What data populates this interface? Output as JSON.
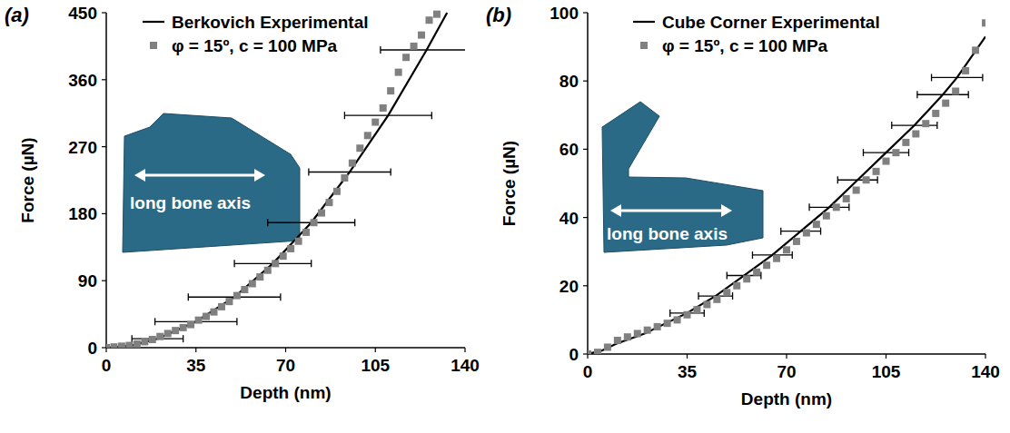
{
  "chart_data": [
    {
      "type": "line",
      "title": "(a)",
      "xlabel": "Depth (nm)",
      "ylabel": "Force (µN)",
      "xlim": [
        0,
        140
      ],
      "xticks": [
        0,
        35,
        70,
        105,
        140
      ],
      "ylim": [
        0,
        450
      ],
      "yticks": [
        0,
        90,
        180,
        270,
        360,
        450
      ],
      "legend": "upper left",
      "annotation": "long bone axis",
      "series": [
        {
          "name": "Berkovich Experimental",
          "type": "line",
          "color": "#000000",
          "x": [
            0,
            10,
            20,
            35,
            50,
            65,
            80,
            95,
            110,
            125,
            133
          ],
          "values": [
            0,
            3,
            12,
            35,
            68,
            113,
            168,
            236,
            312,
            400,
            450
          ],
          "x_error": [
            null,
            null,
            10,
            16,
            18,
            15,
            17,
            16,
            17,
            18,
            null
          ]
        },
        {
          "name": "φ = 15º, c = 100 MPa",
          "type": "scatter",
          "marker": "square",
          "color": "#808080",
          "x": [
            0,
            3,
            6,
            9,
            12,
            15,
            18,
            21,
            24,
            27,
            30,
            33,
            36,
            39,
            42,
            45,
            48,
            51,
            54,
            57,
            60,
            63,
            66,
            69,
            72,
            75,
            78,
            81,
            84,
            87,
            90,
            93,
            96,
            99,
            102,
            105,
            108,
            111,
            114,
            117,
            120,
            123,
            126,
            129
          ],
          "values": [
            0,
            1,
            2,
            3,
            5,
            8,
            11,
            15,
            19,
            23,
            27,
            31,
            37,
            42,
            48,
            55,
            62,
            70,
            78,
            86,
            95,
            104,
            113,
            123,
            133,
            143,
            155,
            168,
            181,
            195,
            210,
            228,
            248,
            268,
            285,
            303,
            322,
            345,
            370,
            390,
            405,
            420,
            440,
            448
          ]
        }
      ]
    },
    {
      "type": "line",
      "title": "(b)",
      "xlabel": "Depth (nm)",
      "ylabel": "Force (µN)",
      "xlim": [
        0,
        140
      ],
      "xticks": [
        0,
        35,
        70,
        105,
        140
      ],
      "ylim": [
        0,
        100
      ],
      "yticks": [
        0,
        20,
        40,
        60,
        80,
        100
      ],
      "legend": "upper left",
      "annotation": "long bone axis",
      "series": [
        {
          "name": "Cube Corner Experimental",
          "type": "line",
          "color": "#000000",
          "x": [
            0,
            5,
            10,
            20,
            35,
            45,
            55,
            65,
            75,
            85,
            95,
            105,
            115,
            125,
            130,
            140
          ],
          "values": [
            0,
            1,
            3,
            6,
            12,
            17,
            23,
            29,
            36,
            43,
            51,
            59,
            67,
            76,
            81,
            93
          ],
          "x_error": [
            null,
            null,
            null,
            null,
            6,
            6,
            6,
            7,
            7,
            7,
            7,
            8,
            8,
            9,
            9,
            null
          ]
        },
        {
          "name": "φ = 15º, c = 100 MPa",
          "type": "scatter",
          "marker": "square",
          "color": "#808080",
          "x": [
            0,
            3.5,
            7,
            10.5,
            14,
            17.5,
            21,
            24.5,
            28,
            31.5,
            35,
            38.5,
            42,
            45.5,
            49,
            52.5,
            56,
            59.5,
            63,
            66.5,
            70,
            73.5,
            77,
            80.5,
            84,
            87.5,
            91,
            94.5,
            98,
            101.5,
            105,
            108.5,
            112,
            115.5,
            119,
            122.5,
            126,
            129.5,
            133,
            136.5,
            140
          ],
          "values": [
            0,
            0.5,
            2,
            4,
            5,
            6,
            7,
            8,
            9,
            10,
            11.5,
            13,
            14.5,
            16,
            18,
            20,
            22,
            24,
            26,
            28,
            30.5,
            33,
            35.5,
            38,
            40.5,
            43,
            45.5,
            48,
            51,
            53.5,
            56.5,
            59,
            62,
            64.5,
            67.5,
            70.5,
            73.5,
            77,
            83,
            89,
            97
          ]
        }
      ]
    }
  ]
}
